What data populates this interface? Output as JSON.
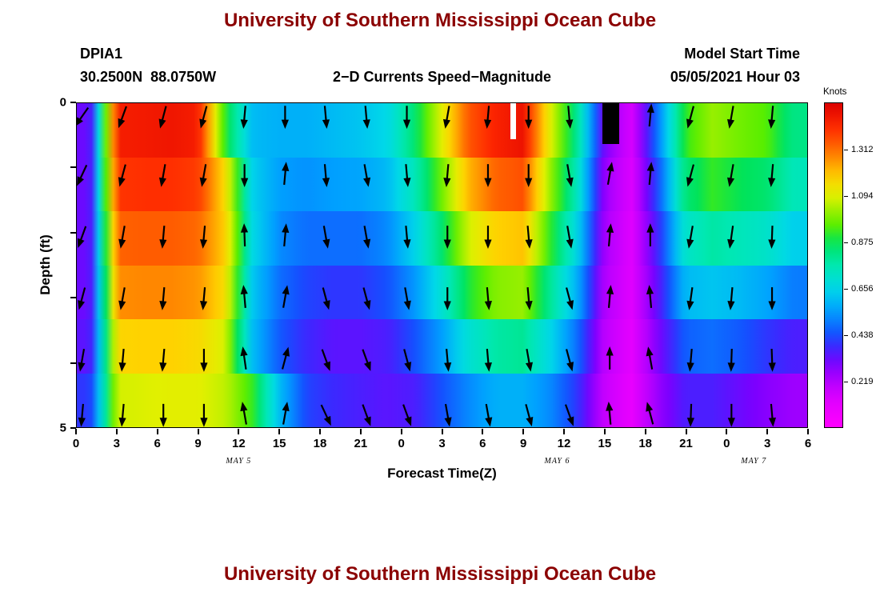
{
  "colors": {
    "title": "#8B0000",
    "text": "#000000",
    "arrow": "#000000"
  },
  "page": {
    "top_title": "University of Southern Mississippi Ocean Cube",
    "bottom_title": "University of Southern Mississippi Ocean Cube",
    "station_id": "DPIA1",
    "station_coords": "30.2500N  88.0750W",
    "plot_title": "2−D Currents Speed−Magnitude",
    "model_start_label": "Model Start Time",
    "model_start_value": "05/05/2021 Hour 03",
    "xlabel": "Forecast Time(Z)",
    "ylabel": "Depth (ft)",
    "colorbar_title": "Knots"
  },
  "chart_data": {
    "type": "heatmap",
    "title": "2−D Currents Speed−Magnitude",
    "station": "DPIA1",
    "location": "30.2500N 88.0750W",
    "model_start": "05/05/2021 Hour 03",
    "xlabel": "Forecast Time(Z)",
    "ylabel": "Depth (ft)",
    "units": "Knots",
    "x_hours_range": [
      0,
      54
    ],
    "x_tick_hours": [
      0,
      3,
      6,
      9,
      12,
      15,
      18,
      21,
      24,
      27,
      30,
      33,
      36,
      39,
      42,
      45,
      48,
      51,
      54
    ],
    "x_tick_labels": [
      "0",
      "3",
      "6",
      "9",
      "12",
      "15",
      "18",
      "21",
      "0",
      "3",
      "6",
      "9",
      "12",
      "15",
      "18",
      "21",
      "0",
      "3",
      "6"
    ],
    "date_labels": [
      {
        "label": "MAY 5",
        "hour": 12
      },
      {
        "label": "MAY 6",
        "hour": 35.5
      },
      {
        "label": "MAY 7",
        "hour": 50
      }
    ],
    "depth_range_ft": [
      0,
      5
    ],
    "y_tick_depths": [
      0,
      1,
      2,
      3,
      4,
      5
    ],
    "y_tick_labels": [
      "0",
      "",
      "",
      "",
      "",
      "5"
    ],
    "colorbar": {
      "min": 0,
      "max": 1.533,
      "tick_values": [
        1.312,
        1.094,
        0.875,
        0.656,
        0.438,
        0.219
      ]
    },
    "colormap_stops": [
      [
        0.0,
        "#FF00FF"
      ],
      [
        0.11,
        "#E600FF"
      ],
      [
        0.219,
        "#B400FF"
      ],
      [
        0.3,
        "#7A00FF"
      ],
      [
        0.38,
        "#3C28FF"
      ],
      [
        0.438,
        "#1450FF"
      ],
      [
        0.55,
        "#00A0FF"
      ],
      [
        0.656,
        "#00D8E8"
      ],
      [
        0.76,
        "#00E8B4"
      ],
      [
        0.875,
        "#00E35A"
      ],
      [
        0.95,
        "#55EE00"
      ],
      [
        1.05,
        "#B4F000"
      ],
      [
        1.094,
        "#E1F000"
      ],
      [
        1.18,
        "#FFD200"
      ],
      [
        1.26,
        "#FF9600"
      ],
      [
        1.312,
        "#FF6E00"
      ],
      [
        1.42,
        "#FF2800"
      ],
      [
        1.533,
        "#DC0000"
      ]
    ],
    "grid_time_centers": [
      1,
      3,
      5,
      7,
      9,
      11,
      13,
      15,
      17,
      19,
      21,
      23,
      25,
      27,
      29,
      31,
      33,
      35,
      37,
      39,
      41,
      43,
      45,
      47,
      49,
      51,
      53
    ],
    "grid_depth_bands": [
      [
        0,
        0.83
      ],
      [
        0.83,
        1.67
      ],
      [
        1.67,
        2.5
      ],
      [
        2.5,
        3.33
      ],
      [
        3.33,
        4.17
      ],
      [
        4.17,
        5
      ]
    ],
    "speed_knots": [
      [
        0.32,
        1.45,
        1.46,
        1.47,
        1.45,
        0.9,
        0.6,
        0.58,
        0.58,
        0.6,
        0.62,
        0.66,
        0.85,
        1.1,
        1.35,
        1.44,
        1.48,
        1.1,
        0.8,
        0.3,
        0.14,
        0.5,
        0.92,
        1.02,
        0.98,
        0.95,
        0.82
      ],
      [
        0.32,
        1.4,
        1.41,
        1.41,
        1.39,
        1.15,
        0.64,
        0.55,
        0.53,
        0.55,
        0.56,
        0.6,
        0.75,
        0.98,
        1.22,
        1.33,
        1.36,
        1.02,
        0.74,
        0.26,
        0.13,
        0.44,
        0.84,
        0.92,
        0.88,
        0.85,
        0.75
      ],
      [
        0.32,
        1.33,
        1.34,
        1.34,
        1.32,
        1.18,
        0.66,
        0.52,
        0.48,
        0.48,
        0.48,
        0.52,
        0.65,
        0.85,
        1.08,
        1.18,
        1.2,
        0.92,
        0.66,
        0.24,
        0.12,
        0.38,
        0.72,
        0.78,
        0.75,
        0.72,
        0.64
      ],
      [
        0.32,
        1.27,
        1.28,
        1.28,
        1.26,
        1.15,
        0.62,
        0.48,
        0.42,
        0.4,
        0.4,
        0.44,
        0.54,
        0.7,
        0.9,
        1.0,
        1.02,
        0.8,
        0.58,
        0.22,
        0.12,
        0.34,
        0.6,
        0.62,
        0.6,
        0.56,
        0.5
      ],
      [
        0.34,
        1.17,
        1.18,
        1.18,
        1.16,
        1.08,
        0.6,
        0.45,
        0.38,
        0.34,
        0.34,
        0.36,
        0.44,
        0.55,
        0.7,
        0.78,
        0.8,
        0.66,
        0.48,
        0.2,
        0.11,
        0.3,
        0.46,
        0.48,
        0.45,
        0.4,
        0.36
      ],
      [
        0.4,
        1.08,
        1.09,
        1.1,
        1.1,
        1.06,
        0.92,
        0.6,
        0.42,
        0.38,
        0.36,
        0.34,
        0.36,
        0.44,
        0.52,
        0.58,
        0.58,
        0.52,
        0.4,
        0.18,
        0.1,
        0.26,
        0.36,
        0.36,
        0.32,
        0.28,
        0.25
      ]
    ],
    "arrows": {
      "angle_convention": "degrees clockwise from up (north); arrowhead points toward heading",
      "time_centers": [
        0.4,
        3.4,
        6.4,
        9.4,
        12.4,
        15.4,
        18.4,
        21.4,
        24.4,
        27.4,
        30.4,
        33.4,
        36.4,
        39.4,
        42.4,
        45.4,
        48.4,
        51.4
      ],
      "depth_centers": [
        0.2,
        1.1,
        2.05,
        3.0,
        3.95,
        4.8
      ],
      "angles_deg": [
        [
          215,
          200,
          195,
          195,
          185,
          180,
          175,
          175,
          180,
          190,
          185,
          180,
          175,
          10,
          5,
          195,
          190,
          185
        ],
        [
          205,
          195,
          190,
          190,
          180,
          5,
          175,
          170,
          175,
          185,
          180,
          180,
          170,
          10,
          5,
          195,
          190,
          185
        ],
        [
          200,
          190,
          185,
          185,
          358,
          5,
          170,
          170,
          175,
          180,
          180,
          175,
          170,
          5,
          0,
          190,
          188,
          182
        ],
        [
          195,
          190,
          185,
          185,
          355,
          10,
          165,
          165,
          170,
          180,
          175,
          175,
          165,
          5,
          355,
          188,
          185,
          180
        ],
        [
          190,
          185,
          185,
          180,
          352,
          15,
          160,
          160,
          165,
          175,
          175,
          170,
          165,
          0,
          350,
          185,
          182,
          178
        ],
        [
          185,
          185,
          180,
          180,
          350,
          10,
          155,
          160,
          160,
          170,
          170,
          165,
          160,
          355,
          345,
          182,
          180,
          175
        ]
      ]
    },
    "markers": [
      {
        "shape": "bar",
        "color": "#FFFFFF",
        "hour": 32.2,
        "width_hours": 0.45,
        "depth_top": 0,
        "depth_bottom": 0.55
      },
      {
        "shape": "bar",
        "color": "#000000",
        "hour": 39.4,
        "width_hours": 1.2,
        "depth_top": 0,
        "depth_bottom": 0.63
      }
    ]
  }
}
